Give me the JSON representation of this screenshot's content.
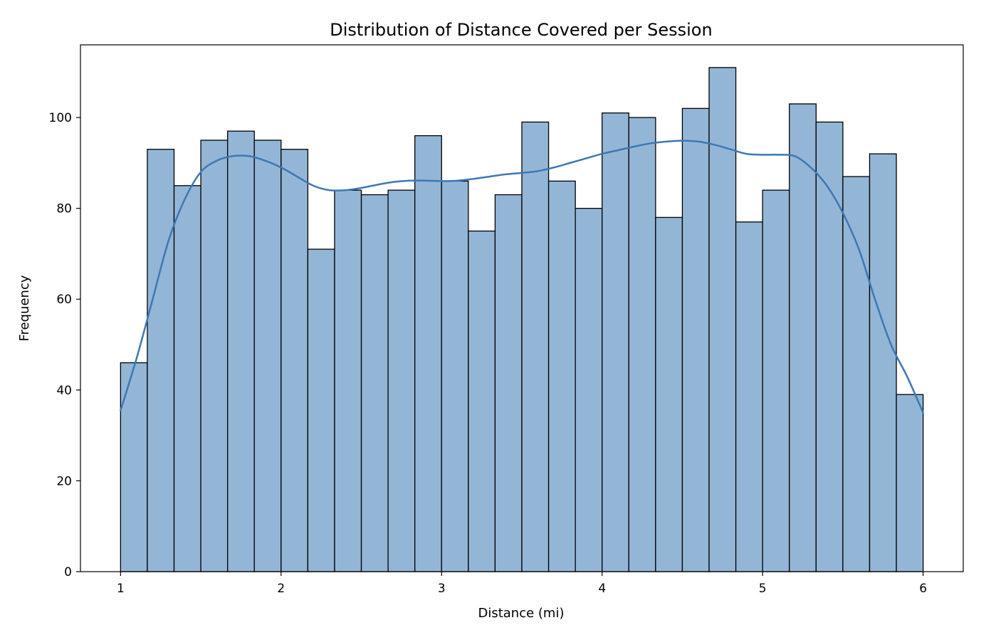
{
  "chart_data": {
    "type": "bar",
    "title": "Distribution of Distance Covered per Session",
    "xlabel": "Distance (mi)",
    "ylabel": "Frequency",
    "xlim": [
      0.75,
      6.25
    ],
    "ylim": [
      0,
      116
    ],
    "xticks": [
      1,
      2,
      3,
      4,
      5,
      6
    ],
    "yticks": [
      0,
      20,
      40,
      60,
      80,
      100
    ],
    "grid": false,
    "bin_start": 1,
    "bin_end": 6,
    "bin_count": 30,
    "bin_width": 0.16667,
    "bin_left_edges": [
      1.0,
      1.167,
      1.333,
      1.5,
      1.667,
      1.833,
      2.0,
      2.167,
      2.333,
      2.5,
      2.667,
      2.833,
      3.0,
      3.167,
      3.333,
      3.5,
      3.667,
      3.833,
      4.0,
      4.167,
      4.333,
      4.5,
      4.667,
      4.833,
      5.0,
      5.167,
      5.333,
      5.5,
      5.667,
      5.833
    ],
    "values": [
      46,
      93,
      85,
      95,
      97,
      95,
      93,
      71,
      84,
      83,
      84,
      96,
      86,
      75,
      83,
      99,
      86,
      80,
      101,
      100,
      78,
      102,
      111,
      77,
      84,
      103,
      99,
      87,
      92,
      39
    ],
    "bar_color": "#94b6d6",
    "bar_edge_color": "#000000",
    "kde": {
      "color": "#3d78b5",
      "x": [
        1.0,
        1.1,
        1.2,
        1.3,
        1.4,
        1.5,
        1.6,
        1.7,
        1.8,
        1.9,
        2.0,
        2.1,
        2.2,
        2.3,
        2.4,
        2.5,
        2.6,
        2.7,
        2.8,
        2.9,
        3.0,
        3.1,
        3.2,
        3.3,
        3.4,
        3.5,
        3.6,
        3.7,
        3.8,
        3.9,
        4.0,
        4.1,
        4.2,
        4.3,
        4.4,
        4.5,
        4.6,
        4.7,
        4.8,
        4.9,
        5.0,
        5.1,
        5.2,
        5.3,
        5.4,
        5.5,
        5.6,
        5.7,
        5.8,
        5.9,
        6.0
      ],
      "y": [
        35.5,
        47,
        60,
        73,
        82,
        88,
        90.5,
        91.5,
        91.5,
        90.5,
        89,
        87,
        85,
        84,
        84,
        84.5,
        85.2,
        85.8,
        86.1,
        86.1,
        86,
        86.1,
        86.5,
        87,
        87.5,
        87.8,
        88.2,
        89,
        90,
        91,
        92,
        92.8,
        93.6,
        94.3,
        94.7,
        94.9,
        94.7,
        94,
        93,
        92,
        91.8,
        91.8,
        91.5,
        89,
        85,
        79,
        71,
        60,
        50,
        43,
        35
      ]
    }
  }
}
